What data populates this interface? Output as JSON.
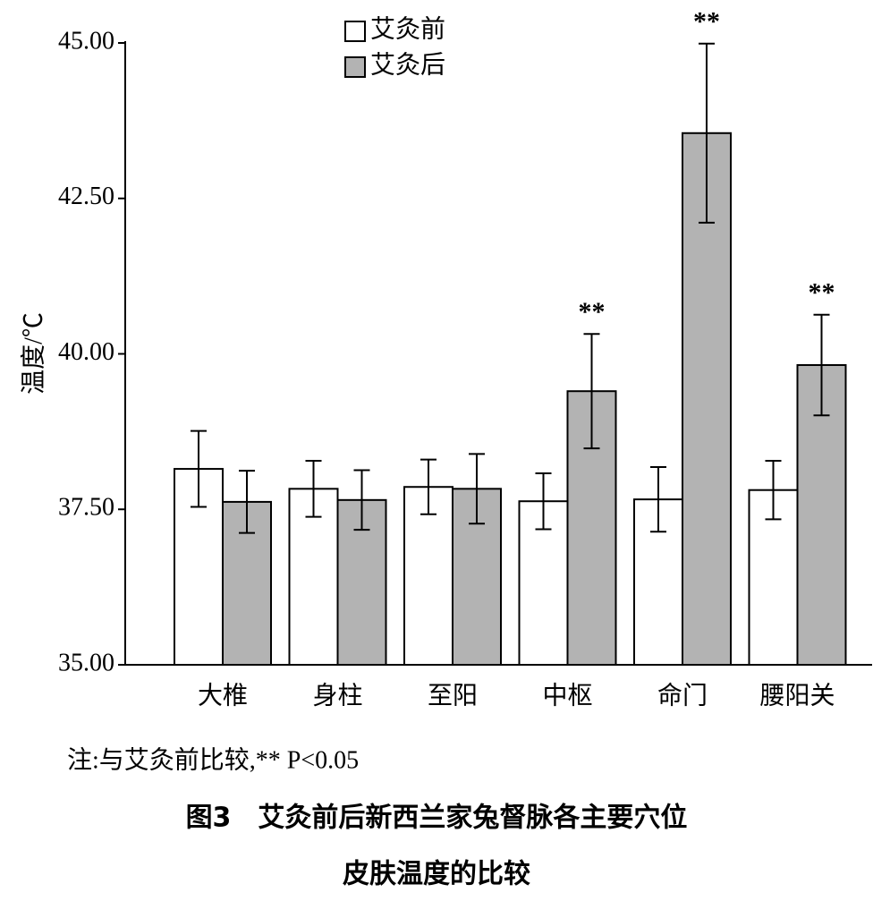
{
  "chart_data": {
    "type": "bar",
    "y_label": "温度/℃",
    "categories": [
      "大椎",
      "身柱",
      "至阳",
      "中枢",
      "命门",
      "腰阳关"
    ],
    "series": [
      {
        "name": "艾灸前",
        "color": "#ffffff",
        "values": [
          38.15,
          37.83,
          37.86,
          37.63,
          37.66,
          37.81
        ],
        "errors": [
          0.61,
          0.45,
          0.44,
          0.45,
          0.52,
          0.47
        ]
      },
      {
        "name": "艾灸后",
        "color": "#b3b3b3",
        "values": [
          37.62,
          37.65,
          37.83,
          39.4,
          43.55,
          39.82
        ],
        "errors": [
          0.5,
          0.48,
          0.56,
          0.92,
          1.44,
          0.81
        ]
      }
    ],
    "significance_labels": [
      null,
      null,
      null,
      "**",
      "**",
      "**"
    ],
    "ylim": [
      35,
      45
    ],
    "yticks": [
      {
        "value": 35,
        "label": "35.00"
      },
      {
        "value": 37.5,
        "label": "37.50"
      },
      {
        "value": 40,
        "label": "40.00"
      },
      {
        "value": 42.5,
        "label": "42.50"
      },
      {
        "value": 45,
        "label": "45.00"
      }
    ],
    "note": "注:与艾灸前比较,** P<0.05",
    "caption_lines": [
      "图3　艾灸前后新西兰家兔督脉各主要穴位",
      "皮肤温度的比较"
    ]
  }
}
